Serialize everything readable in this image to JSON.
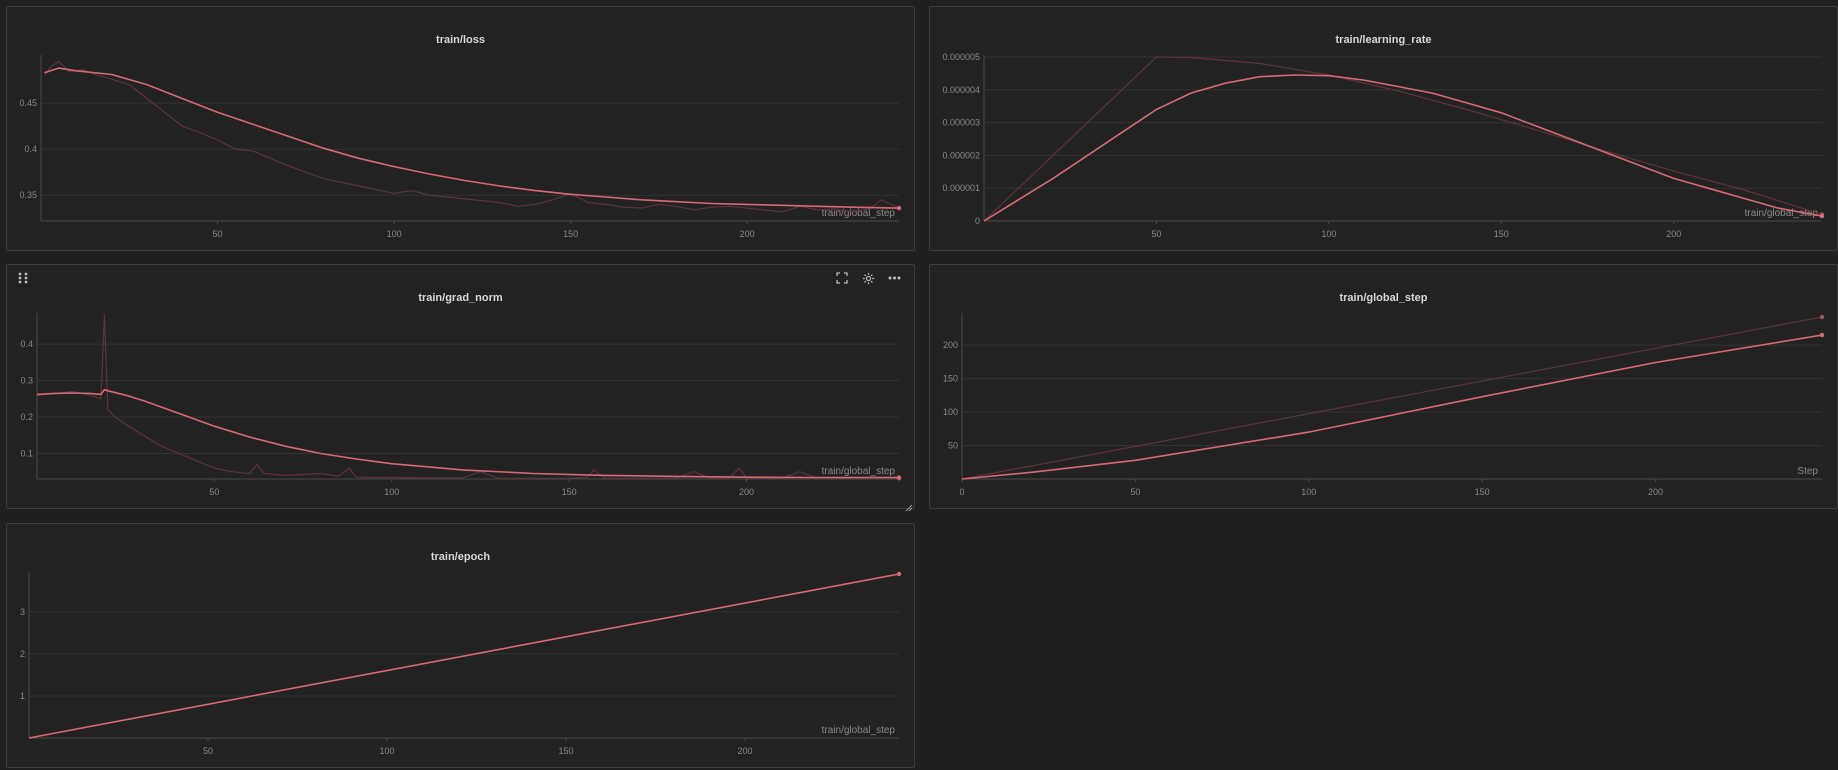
{
  "colors": {
    "smoothed": "#d86a77",
    "raw": "#6b3a40",
    "raw_line": "#5e3439",
    "grid": "#333333",
    "axis": "#4a4a4a"
  },
  "panel_controls": {
    "drag_icon": "drag-grip-icon",
    "expand_icon": "fullscreen-icon",
    "settings_icon": "gear-icon",
    "more_icon": "more-dots-icon",
    "resize_icon": "resize-corner-icon"
  },
  "chart_data": [
    {
      "id": "loss",
      "type": "line",
      "title": "train/loss",
      "xlabel": "train/global_step",
      "xlim": [
        0,
        243
      ],
      "ylim": [
        0.322,
        0.5
      ],
      "xticks": [
        50,
        100,
        150,
        200
      ],
      "yticks": [
        0.35,
        0.4,
        0.45
      ],
      "ytick_labels": [
        "0.35",
        "0.4",
        "0.45"
      ],
      "series": [
        {
          "role": "raw",
          "x": [
            1,
            3,
            5,
            8,
            12,
            16,
            20,
            25,
            30,
            35,
            40,
            45,
            50,
            55,
            60,
            65,
            70,
            75,
            80,
            85,
            90,
            95,
            100,
            105,
            110,
            115,
            120,
            125,
            130,
            135,
            140,
            145,
            150,
            155,
            160,
            165,
            170,
            175,
            180,
            185,
            190,
            195,
            200,
            205,
            210,
            215,
            220,
            225,
            230,
            235,
            238,
            243
          ],
          "y": [
            0.48,
            0.49,
            0.495,
            0.484,
            0.486,
            0.48,
            0.476,
            0.47,
            0.455,
            0.44,
            0.425,
            0.418,
            0.41,
            0.4,
            0.398,
            0.39,
            0.382,
            0.375,
            0.368,
            0.364,
            0.36,
            0.356,
            0.352,
            0.355,
            0.35,
            0.348,
            0.346,
            0.344,
            0.342,
            0.338,
            0.34,
            0.345,
            0.352,
            0.342,
            0.34,
            0.337,
            0.336,
            0.34,
            0.338,
            0.334,
            0.337,
            0.338,
            0.336,
            0.334,
            0.332,
            0.338,
            0.334,
            0.335,
            0.332,
            0.336,
            0.345,
            0.336
          ]
        },
        {
          "role": "smoothed",
          "x": [
            1,
            5,
            10,
            20,
            30,
            40,
            50,
            60,
            70,
            80,
            90,
            100,
            110,
            120,
            130,
            140,
            150,
            160,
            170,
            180,
            190,
            200,
            210,
            220,
            230,
            243
          ],
          "y": [
            0.483,
            0.488,
            0.485,
            0.481,
            0.47,
            0.455,
            0.44,
            0.427,
            0.414,
            0.401,
            0.39,
            0.381,
            0.373,
            0.366,
            0.36,
            0.355,
            0.351,
            0.348,
            0.345,
            0.343,
            0.341,
            0.34,
            0.339,
            0.338,
            0.337,
            0.336
          ]
        }
      ]
    },
    {
      "id": "lr",
      "type": "line",
      "title": "train/learning_rate",
      "xlabel": "train/global_step",
      "xlim": [
        0,
        243
      ],
      "ylim": [
        0,
        5e-06
      ],
      "xticks": [
        50,
        100,
        150,
        200
      ],
      "yticks": [
        0,
        1e-06,
        2e-06,
        3e-06,
        4e-06,
        5e-06
      ],
      "ytick_labels": [
        "0",
        "0.000001",
        "0.000002",
        "0.000003",
        "0.000004",
        "0.000005"
      ],
      "series": [
        {
          "role": "raw",
          "x": [
            0,
            50,
            60,
            80,
            100,
            120,
            140,
            160,
            180,
            200,
            220,
            243
          ],
          "y": [
            0,
            5e-06,
            4.985e-06,
            4.801e-06,
            4.45e-06,
            3.97e-06,
            3.4e-06,
            2.78e-06,
            2.14e-06,
            1.52e-06,
            9.6e-07,
            2e-07
          ]
        },
        {
          "role": "smoothed",
          "x": [
            0,
            10,
            20,
            30,
            40,
            50,
            60,
            70,
            80,
            90,
            100,
            110,
            120,
            130,
            140,
            150,
            160,
            170,
            180,
            190,
            200,
            210,
            220,
            230,
            243
          ],
          "y": [
            0,
            6.5e-07,
            1.3e-06,
            2e-06,
            2.7e-06,
            3.4e-06,
            3.9e-06,
            4.2e-06,
            4.4e-06,
            4.45e-06,
            4.43e-06,
            4.3e-06,
            4.1e-06,
            3.9e-06,
            3.6e-06,
            3.3e-06,
            2.9e-06,
            2.5e-06,
            2.1e-06,
            1.7e-06,
            1.3e-06,
            1e-06,
            7e-07,
            4e-07,
            1.5e-07
          ]
        }
      ]
    },
    {
      "id": "grad",
      "type": "line",
      "title": "train/grad_norm",
      "xlabel": "train/global_step",
      "xlim": [
        0,
        243
      ],
      "ylim": [
        0.03,
        0.48
      ],
      "xticks": [
        50,
        100,
        150,
        200
      ],
      "yticks": [
        0.1,
        0.2,
        0.3,
        0.4
      ],
      "ytick_labels": [
        "0.1",
        "0.2",
        "0.3",
        "0.4"
      ],
      "series": [
        {
          "role": "raw",
          "x": [
            0,
            5,
            10,
            15,
            18,
            19,
            20,
            22,
            25,
            30,
            35,
            40,
            45,
            50,
            55,
            60,
            62,
            64,
            70,
            80,
            85,
            88,
            90,
            95,
            100,
            110,
            120,
            125,
            130,
            140,
            150,
            155,
            157,
            160,
            170,
            180,
            185,
            190,
            195,
            198,
            200,
            210,
            215,
            220,
            230,
            243
          ],
          "y": [
            0.26,
            0.265,
            0.27,
            0.26,
            0.25,
            0.48,
            0.22,
            0.2,
            0.18,
            0.15,
            0.12,
            0.1,
            0.08,
            0.06,
            0.05,
            0.045,
            0.07,
            0.045,
            0.04,
            0.045,
            0.038,
            0.06,
            0.035,
            0.034,
            0.034,
            0.033,
            0.033,
            0.05,
            0.032,
            0.032,
            0.032,
            0.034,
            0.055,
            0.032,
            0.032,
            0.032,
            0.05,
            0.032,
            0.032,
            0.06,
            0.032,
            0.032,
            0.05,
            0.032,
            0.032,
            0.032
          ]
        },
        {
          "role": "smoothed",
          "x": [
            0,
            5,
            10,
            15,
            18,
            19,
            20,
            25,
            30,
            40,
            50,
            60,
            70,
            80,
            90,
            100,
            120,
            140,
            160,
            180,
            200,
            220,
            243
          ],
          "y": [
            0.262,
            0.265,
            0.266,
            0.265,
            0.262,
            0.275,
            0.272,
            0.26,
            0.245,
            0.21,
            0.175,
            0.145,
            0.12,
            0.1,
            0.085,
            0.072,
            0.055,
            0.045,
            0.04,
            0.037,
            0.035,
            0.034,
            0.034
          ]
        }
      ]
    },
    {
      "id": "gstep",
      "type": "line",
      "title": "train/global_step",
      "xlabel": "Step",
      "xlim": [
        0,
        248
      ],
      "ylim": [
        0,
        245
      ],
      "xticks": [
        0,
        50,
        100,
        150,
        200
      ],
      "yticks": [
        50,
        100,
        150,
        200
      ],
      "ytick_labels": [
        "50",
        "100",
        "150",
        "200"
      ],
      "series": [
        {
          "role": "raw",
          "x": [
            0,
            248
          ],
          "y": [
            0,
            242
          ]
        },
        {
          "role": "smoothed",
          "x": [
            0,
            20,
            50,
            100,
            150,
            200,
            248
          ],
          "y": [
            0,
            10,
            28,
            70,
            123,
            174,
            215
          ]
        }
      ]
    },
    {
      "id": "epoch",
      "type": "line",
      "title": "train/epoch",
      "xlabel": "train/global_step",
      "xlim": [
        0,
        243
      ],
      "ylim": [
        0,
        3.9
      ],
      "xticks": [
        50,
        100,
        150,
        200
      ],
      "yticks": [
        1,
        2,
        3
      ],
      "ytick_labels": [
        "1",
        "2",
        "3"
      ],
      "series": [
        {
          "role": "smoothed",
          "x": [
            0,
            243
          ],
          "y": [
            0,
            3.9
          ]
        }
      ]
    }
  ]
}
